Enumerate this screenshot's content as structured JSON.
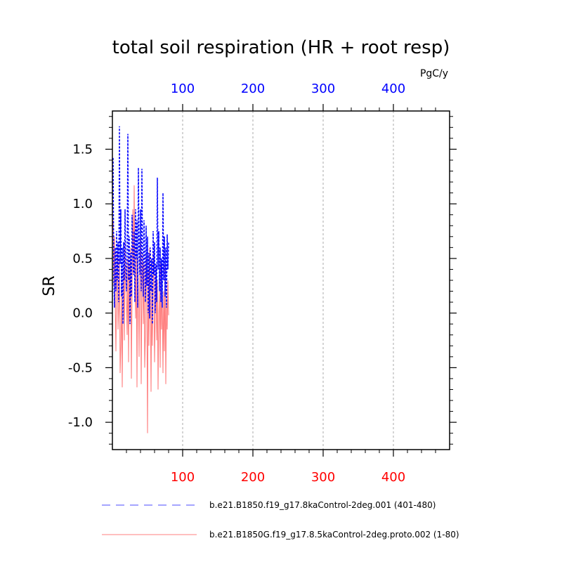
{
  "chart_data": {
    "type": "line",
    "title": "total soil respiration (HR + root resp)",
    "units": "PgC/y",
    "ylabel": "SR",
    "xlim": [
      0,
      480
    ],
    "ylim": [
      -1.25,
      1.85
    ],
    "x_ticks": [
      100,
      200,
      300,
      400
    ],
    "x_tick_labels": [
      "100",
      "200",
      "300",
      "400"
    ],
    "y_ticks": [
      -1.0,
      -0.5,
      0.0,
      0.5,
      1.0,
      1.5
    ],
    "y_tick_labels": [
      "-1.0",
      "-0.5",
      "0.0",
      "0.5",
      "1.0",
      "1.5"
    ],
    "top_axis_color": "#0000ff",
    "bottom_axis_color": "#ff0000",
    "grid": "vertical dotted at major x ticks",
    "legend_position": "bottom",
    "series": [
      {
        "name": "b.e21.B1850.f19_g17.8kaControl-2deg.001 (401-480)",
        "color": "#0000ff",
        "style": "dashed",
        "x": [
          1,
          2,
          3,
          4,
          5,
          6,
          7,
          8,
          9,
          10,
          11,
          12,
          13,
          14,
          15,
          16,
          17,
          18,
          19,
          20,
          21,
          22,
          23,
          24,
          25,
          26,
          27,
          28,
          29,
          30,
          31,
          32,
          33,
          34,
          35,
          36,
          37,
          38,
          39,
          40,
          41,
          42,
          43,
          44,
          45,
          46,
          47,
          48,
          49,
          50,
          51,
          52,
          53,
          54,
          55,
          56,
          57,
          58,
          59,
          60,
          61,
          62,
          63,
          64,
          65,
          66,
          67,
          68,
          69,
          70,
          71,
          72,
          73,
          74,
          75,
          76,
          77,
          78,
          79,
          80
        ],
        "y": [
          1.42,
          0.35,
          0.05,
          0.6,
          0.2,
          0.75,
          0.3,
          0.65,
          0.1,
          1.71,
          0.45,
          0.95,
          0.15,
          0.6,
          -0.1,
          0.65,
          0.3,
          0.95,
          0.45,
          0.2,
          0.55,
          1.64,
          0.3,
          0.7,
          -0.1,
          0.55,
          0.15,
          0.9,
          0.6,
          0.35,
          0.75,
          0.1,
          0.95,
          0.5,
          0.85,
          0.05,
          1.33,
          0.6,
          0.35,
          0.95,
          0.2,
          1.32,
          0.45,
          0.15,
          0.85,
          0.5,
          0.1,
          0.8,
          0.25,
          0.7,
          0.0,
          0.55,
          -0.05,
          0.6,
          0.2,
          0.5,
          -0.1,
          0.75,
          0.35,
          0.65,
          0.0,
          0.45,
          0.1,
          1.24,
          0.4,
          0.75,
          0.2,
          0.6,
          0.1,
          0.5,
          0.05,
          1.1,
          0.3,
          0.7,
          0.15,
          0.6,
          0.05,
          0.72,
          0.4,
          0.65
        ]
      },
      {
        "name": "b.e21.B1850G.f19_g17.8.5kaControl-2deg.proto.002 (1-80)",
        "color": "#ff7f7f",
        "style": "solid",
        "x": [
          1,
          2,
          3,
          4,
          5,
          6,
          7,
          8,
          9,
          10,
          11,
          12,
          13,
          14,
          15,
          16,
          17,
          18,
          19,
          20,
          21,
          22,
          23,
          24,
          25,
          26,
          27,
          28,
          29,
          30,
          31,
          32,
          33,
          34,
          35,
          36,
          37,
          38,
          39,
          40,
          41,
          42,
          43,
          44,
          45,
          46,
          47,
          48,
          49,
          50,
          51,
          52,
          53,
          54,
          55,
          56,
          57,
          58,
          59,
          60,
          61,
          62,
          63,
          64,
          65,
          66,
          67,
          68,
          69,
          70,
          71,
          72,
          73,
          74,
          75,
          76,
          77,
          78,
          79,
          80
        ],
        "y": [
          0.85,
          0.25,
          0.7,
          0.1,
          -0.35,
          0.3,
          0.55,
          -0.15,
          0.05,
          0.5,
          -0.55,
          -0.3,
          0.25,
          -0.68,
          0.15,
          0.4,
          -0.25,
          0.65,
          0.3,
          0.1,
          -0.2,
          0.5,
          -0.45,
          0.45,
          0.05,
          0.6,
          -0.6,
          0.2,
          0.95,
          0.35,
          1.17,
          0.4,
          -0.05,
          0.6,
          -0.68,
          0.5,
          0.15,
          -0.4,
          0.45,
          0.7,
          -0.65,
          0.25,
          0.55,
          -0.1,
          0.45,
          -0.5,
          -0.2,
          0.55,
          0.1,
          -1.1,
          0.4,
          -0.3,
          0.6,
          0.2,
          -0.72,
          0.25,
          -0.3,
          0.55,
          0.35,
          -0.45,
          0.0,
          0.45,
          -0.25,
          0.3,
          -0.7,
          -0.02,
          0.2,
          -0.5,
          0.45,
          -0.15,
          0.1,
          -0.55,
          0.2,
          -0.35,
          0.45,
          -0.65,
          0.1,
          -0.15,
          0.3,
          -0.02
        ]
      }
    ]
  }
}
